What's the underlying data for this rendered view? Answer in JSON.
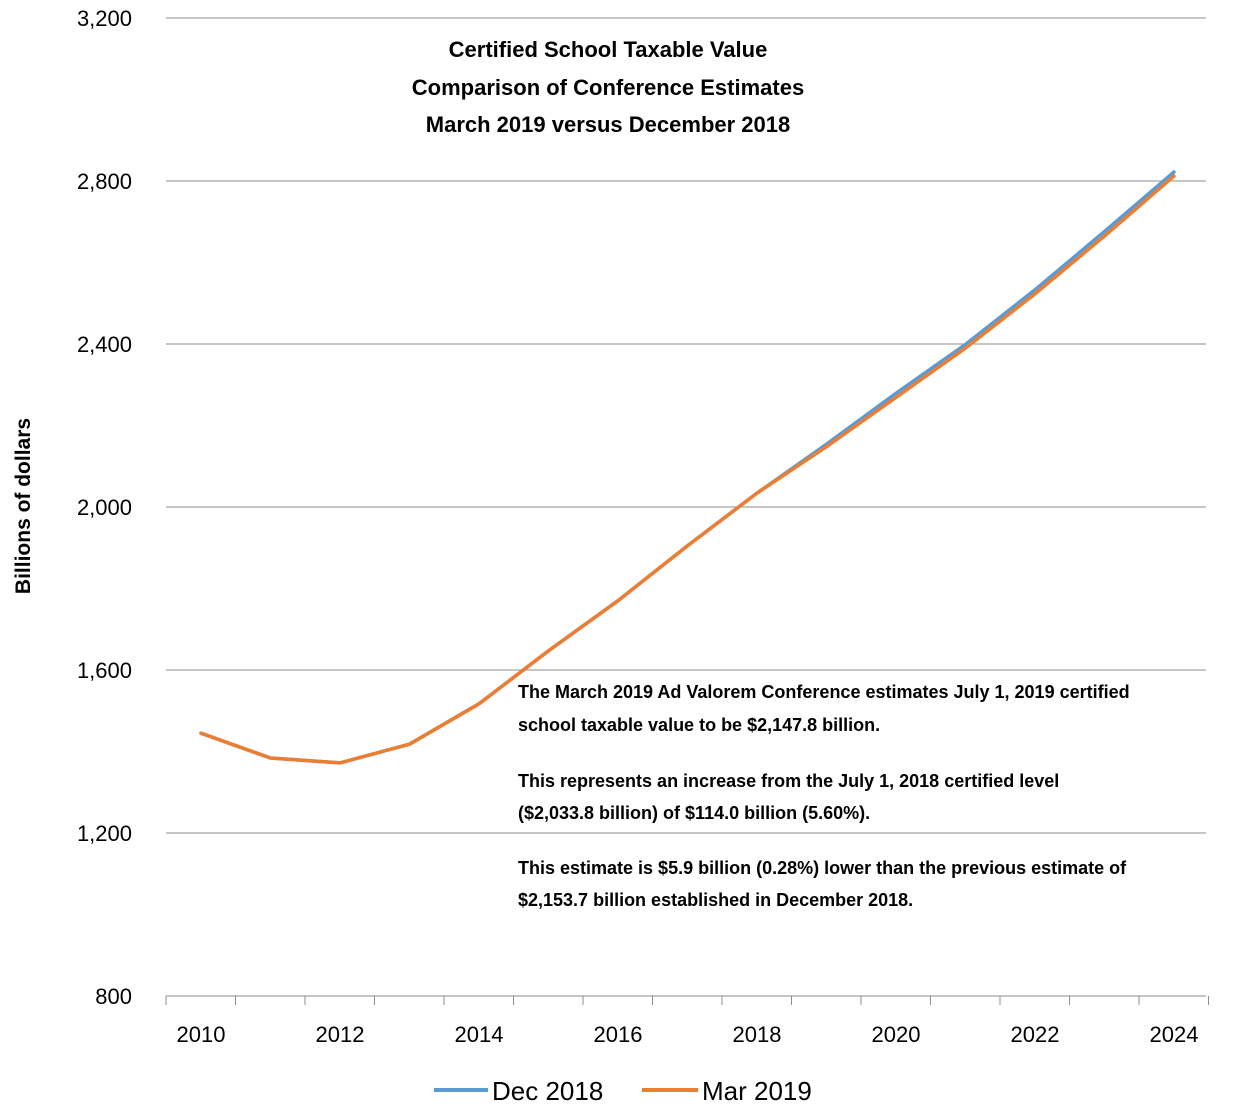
{
  "chart_data": {
    "type": "line",
    "title_lines": [
      "Certified School Taxable Value",
      "Comparison of Conference Estimates",
      "March 2019 versus December 2018"
    ],
    "xlabel": "",
    "ylabel": "Billions of dollars",
    "x": [
      2010,
      2011,
      2012,
      2013,
      2014,
      2015,
      2016,
      2017,
      2018,
      2019,
      2020,
      2021,
      2022,
      2023,
      2024
    ],
    "xticks": [
      "2010",
      "2012",
      "2014",
      "2016",
      "2018",
      "2020",
      "2022",
      "2024"
    ],
    "ylim": [
      800,
      3200
    ],
    "yticks": [
      "800",
      "1,200",
      "1,600",
      "2,000",
      "2,400",
      "2,800",
      "3,200"
    ],
    "series": [
      {
        "name": "Dec 2018",
        "color": "#5B9BD5",
        "values": [
          1445,
          1384,
          1372,
          1418,
          1517,
          1647,
          1770,
          1905,
          2034,
          2154,
          2279,
          2399,
          2533,
          2676,
          2822
        ]
      },
      {
        "name": "Mar 2019",
        "color": "#ED7D31",
        "values": [
          1445,
          1384,
          1372,
          1418,
          1517,
          1647,
          1770,
          1905,
          2034,
          2148,
          2269,
          2390,
          2523,
          2665,
          2812
        ]
      }
    ],
    "legend_position": "bottom",
    "grid": "horizontal",
    "annotation_lines": [
      "The March 2019 Ad Valorem Conference estimates July 1, 2019 certified",
      "school taxable value to be $2,147.8  billion.",
      "",
      "This represents an increase from the  July 1, 2018 certified level",
      "($2,033.8 billion) of $114.0 billion (5.60%).",
      "",
      "This estimate is $5.9 billion (0.28%) lower than the previous estimate of",
      "$2,153.7 billion established in December 2018."
    ]
  }
}
